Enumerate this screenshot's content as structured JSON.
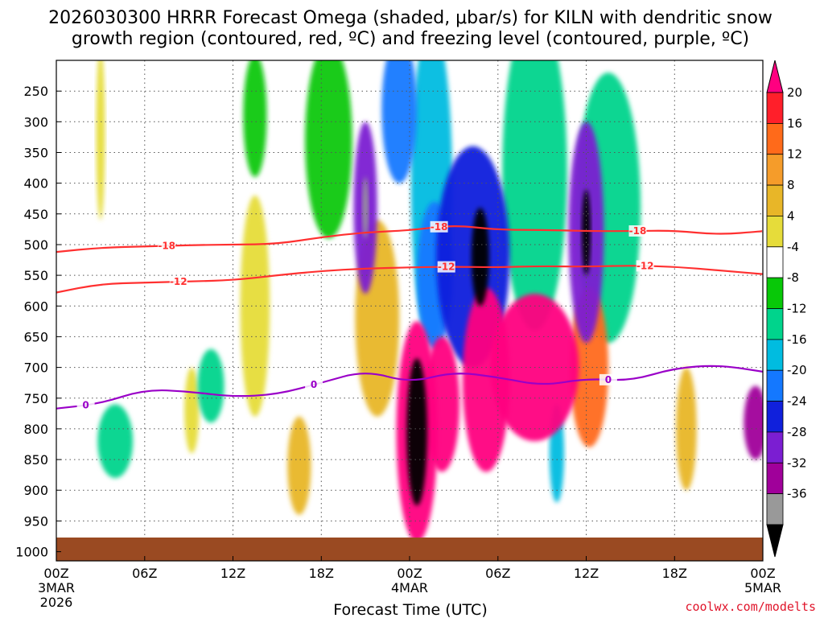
{
  "chart_data": {
    "type": "heatmap",
    "title_line1": "2026030300 HRRR Forecast Omega (shaded, μbar/s) for KILN with dendritic snow",
    "title_line2": "growth region (contoured, red, ºC) and freezing level (contoured, purple, ºC)",
    "xlabel": "Forecast Time (UTC)",
    "credit": "coolwx.com/modelts",
    "x_hours_range": [
      0,
      48
    ],
    "x_ticks": [
      {
        "hour": 0,
        "label": "00Z",
        "sub1": "3MAR",
        "sub2": "2026"
      },
      {
        "hour": 6,
        "label": "06Z"
      },
      {
        "hour": 12,
        "label": "12Z"
      },
      {
        "hour": 18,
        "label": "18Z"
      },
      {
        "hour": 24,
        "label": "00Z",
        "sub1": "4MAR"
      },
      {
        "hour": 30,
        "label": "06Z"
      },
      {
        "hour": 36,
        "label": "12Z"
      },
      {
        "hour": 42,
        "label": "18Z"
      },
      {
        "hour": 48,
        "label": "00Z",
        "sub1": "5MAR"
      }
    ],
    "y_range_hpa": [
      200,
      1015
    ],
    "y_ticks": [
      250,
      300,
      350,
      400,
      450,
      500,
      550,
      600,
      650,
      700,
      750,
      800,
      850,
      900,
      950,
      1000
    ],
    "surface_hpa": 977,
    "colorbar": {
      "levels": [
        -36,
        -32,
        -28,
        -24,
        -20,
        -16,
        -12,
        -8,
        -4,
        4,
        8,
        12,
        16,
        20
      ],
      "labels": [
        "20",
        "16",
        "12",
        "8",
        "4",
        "-4",
        "-8",
        "-12",
        "-16",
        "-20",
        "-24",
        "-28",
        "-32",
        "-36"
      ],
      "colors_top_to_bottom": [
        "#ff0080",
        "#ff1f2a",
        "#ff6a1a",
        "#f59c2a",
        "#e8b628",
        "#e6dc3a",
        "#ffffff",
        "#08c808",
        "#00d48c",
        "#00bce0",
        "#1478ff",
        "#1020dc",
        "#7b1ed2",
        "#a0009a",
        "#999999",
        "#000000"
      ]
    },
    "contours": [
      {
        "name": "dgz_-18",
        "label": "-18",
        "color": "#ff3030",
        "hours": [
          0,
          3,
          6,
          9,
          12,
          15,
          18,
          21,
          24,
          27,
          30,
          33,
          36,
          39,
          42,
          45,
          48
        ],
        "hpa": [
          512,
          505,
          503,
          501,
          500,
          499,
          488,
          480,
          477,
          468,
          476,
          476,
          478,
          478,
          477,
          484,
          478
        ],
        "label_hours": [
          7.5,
          26,
          39.5
        ]
      },
      {
        "name": "dgz_-12",
        "label": "-12",
        "color": "#ff3030",
        "hours": [
          0,
          3,
          6,
          9,
          12,
          15,
          18,
          21,
          24,
          27,
          30,
          33,
          36,
          39,
          42,
          45,
          48
        ],
        "hpa": [
          578,
          564,
          562,
          560,
          558,
          550,
          543,
          539,
          537,
          536,
          537,
          535,
          536,
          534,
          536,
          542,
          548
        ],
        "label_hours": [
          8.3,
          26.5,
          40
        ]
      },
      {
        "name": "freezing_level_0",
        "label": "0",
        "color": "#9a00c8",
        "hours": [
          0,
          3,
          6,
          9,
          12,
          15,
          18,
          21,
          24,
          27,
          30,
          33,
          36,
          39,
          42,
          45,
          48
        ],
        "hpa": [
          767,
          759,
          736,
          739,
          748,
          744,
          725,
          705,
          725,
          707,
          716,
          730,
          718,
          722,
          701,
          696,
          707
        ],
        "label_hours": [
          2,
          17.5,
          37.5
        ]
      }
    ],
    "omega_cells": [
      {
        "h": 24.5,
        "p": 805,
        "rx": 0.7,
        "rp": 120,
        "v": -38
      },
      {
        "h": 24.5,
        "p": 805,
        "rx": 1.4,
        "rp": 180,
        "v": 26
      },
      {
        "h": 26.2,
        "p": 760,
        "rx": 1.2,
        "rp": 110,
        "v": 22
      },
      {
        "h": 32.5,
        "p": 700,
        "rx": 3.0,
        "rp": 120,
        "v": 22
      },
      {
        "h": 29.2,
        "p": 720,
        "rx": 1.6,
        "rp": 150,
        "v": 22
      },
      {
        "h": 36.2,
        "p": 700,
        "rx": 1.3,
        "rp": 130,
        "v": 18
      },
      {
        "h": 21.8,
        "p": 620,
        "rx": 1.5,
        "rp": 160,
        "v": 12
      },
      {
        "h": 13.5,
        "p": 600,
        "rx": 1.0,
        "rp": 180,
        "v": 8
      },
      {
        "h": 16.5,
        "p": 860,
        "rx": 0.8,
        "rp": 80,
        "v": 10
      },
      {
        "h": 42.8,
        "p": 800,
        "rx": 0.7,
        "rp": 100,
        "v": 10
      },
      {
        "h": 9.2,
        "p": 770,
        "rx": 0.5,
        "rp": 70,
        "v": 6
      },
      {
        "h": 3.0,
        "p": 320,
        "rx": 0.3,
        "rp": 140,
        "v": 6
      },
      {
        "h": 25.7,
        "p": 550,
        "rx": 1.2,
        "rp": 120,
        "v": -16
      },
      {
        "h": 28.3,
        "p": 520,
        "rx": 2.5,
        "rp": 180,
        "v": -20
      },
      {
        "h": 28.8,
        "p": 520,
        "rx": 0.6,
        "rp": 80,
        "v": -36
      },
      {
        "h": 36.0,
        "p": 480,
        "rx": 1.2,
        "rp": 180,
        "v": -24
      },
      {
        "h": 36.0,
        "p": 480,
        "rx": 0.3,
        "rp": 70,
        "v": -36
      },
      {
        "h": 21.0,
        "p": 440,
        "rx": 0.8,
        "rp": 140,
        "v": -24
      },
      {
        "h": 21.0,
        "p": 440,
        "rx": 0.2,
        "rp": 50,
        "v": -32
      },
      {
        "h": 23.3,
        "p": 280,
        "rx": 1.2,
        "rp": 120,
        "v": -16
      },
      {
        "h": 25.5,
        "p": 400,
        "rx": 1.4,
        "rp": 260,
        "v": -12
      },
      {
        "h": 32.5,
        "p": 380,
        "rx": 2.2,
        "rp": 260,
        "v": -10
      },
      {
        "h": 37.5,
        "p": 440,
        "rx": 2.2,
        "rp": 220,
        "v": -8
      },
      {
        "h": 18.5,
        "p": 330,
        "rx": 1.6,
        "rp": 160,
        "v": -6
      },
      {
        "h": 13.5,
        "p": 290,
        "rx": 0.8,
        "rp": 100,
        "v": -6
      },
      {
        "h": 4.0,
        "p": 820,
        "rx": 1.2,
        "rp": 60,
        "v": -8
      },
      {
        "h": 10.5,
        "p": 730,
        "rx": 0.9,
        "rp": 60,
        "v": -8
      },
      {
        "h": 34.0,
        "p": 840,
        "rx": 0.5,
        "rp": 80,
        "v": -12
      },
      {
        "h": 47.5,
        "p": 790,
        "rx": 0.8,
        "rp": 60,
        "v": -28
      }
    ]
  }
}
